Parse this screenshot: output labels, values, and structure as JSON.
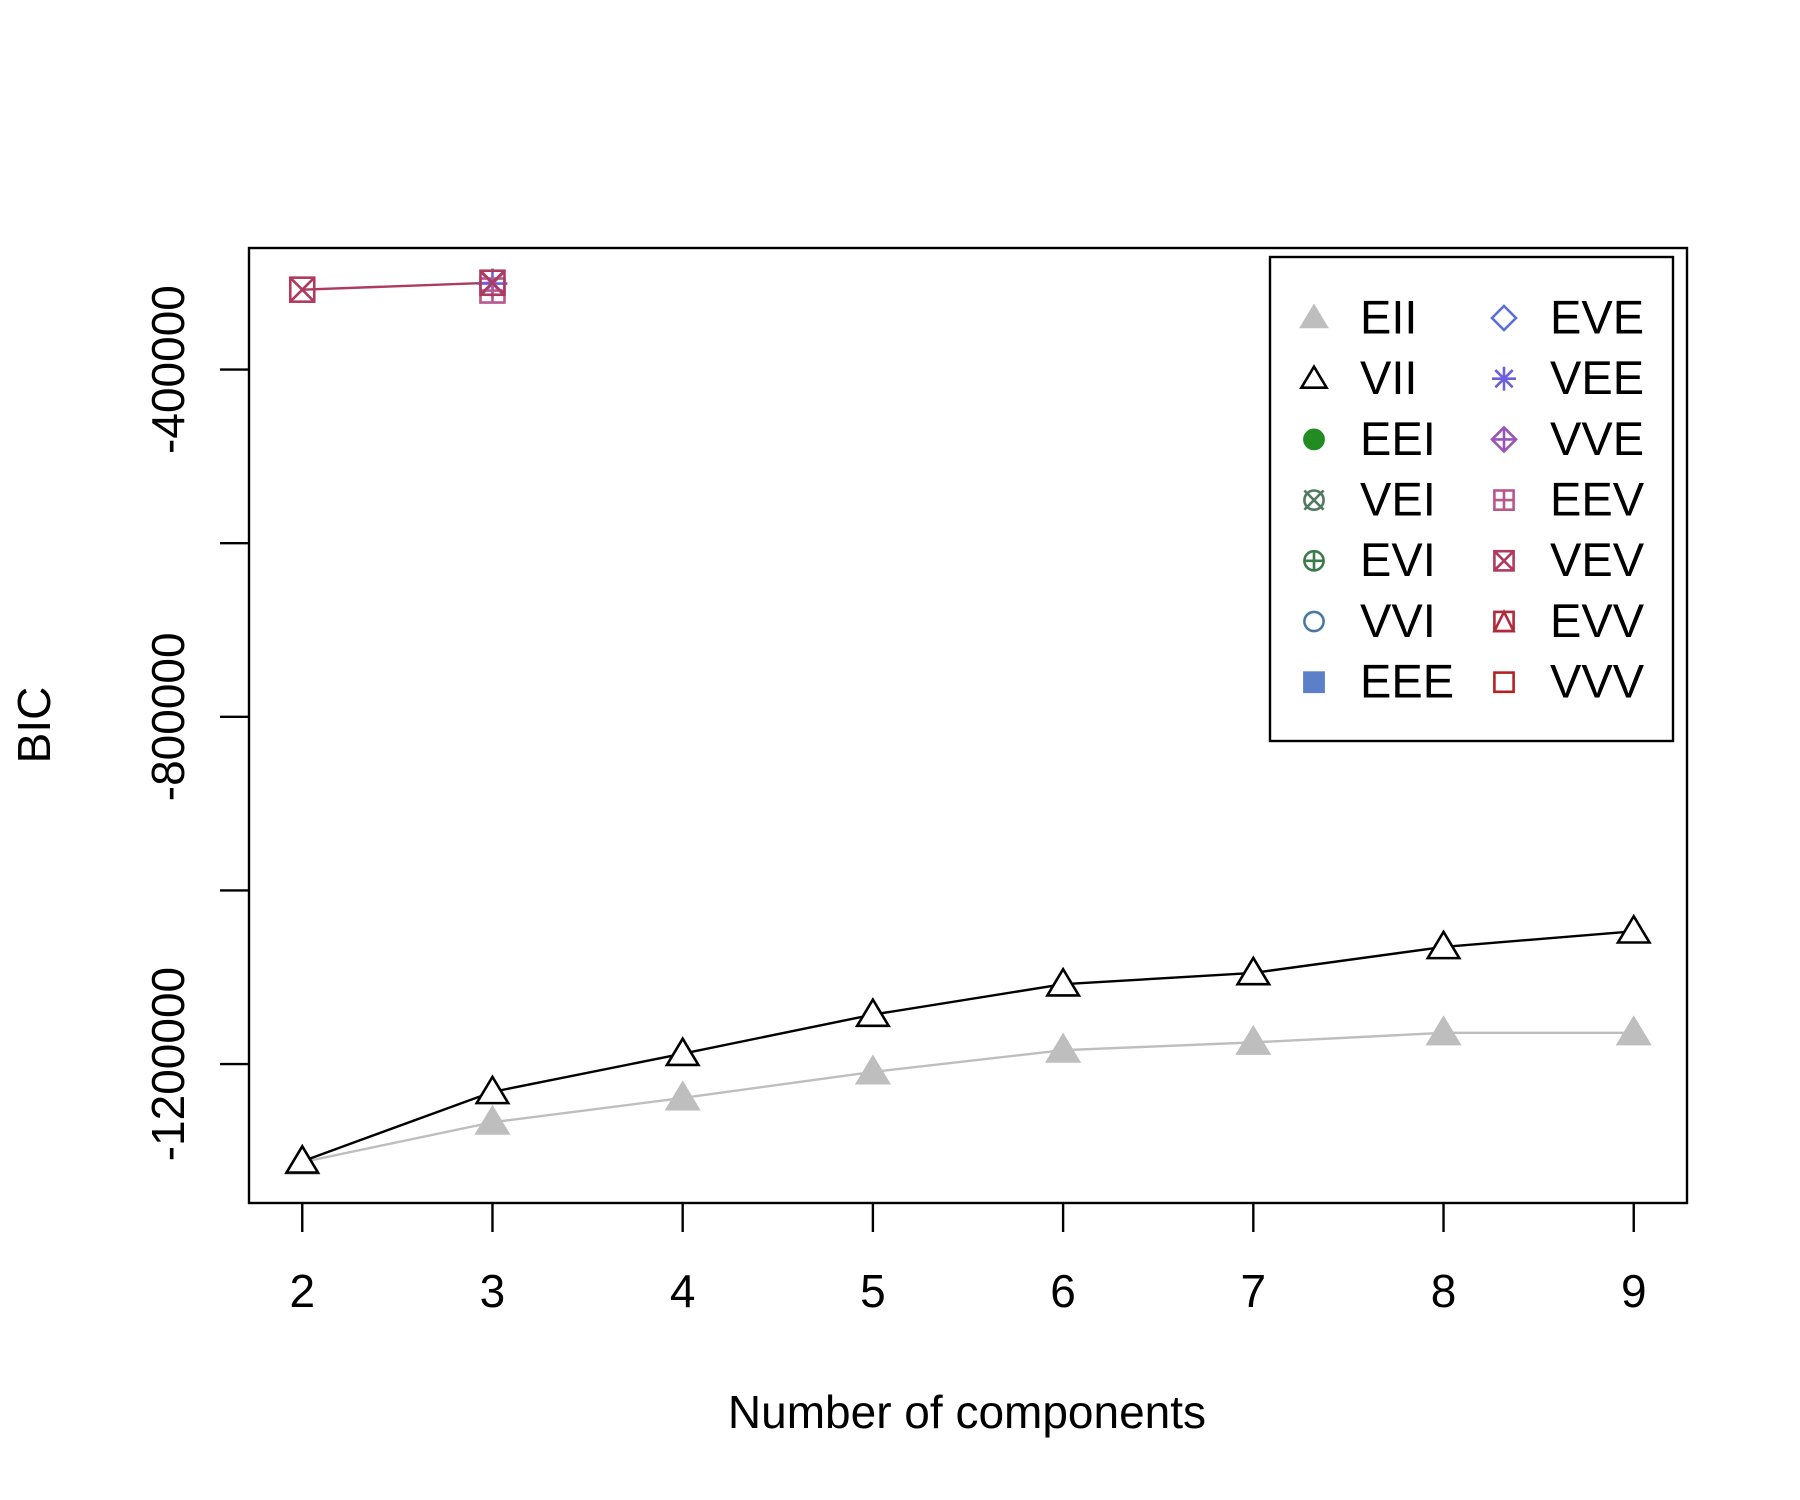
{
  "chart_data": {
    "type": "line",
    "x_label": "Number of components",
    "y_label": "BIC",
    "x": [
      2,
      3,
      4,
      5,
      6,
      7,
      8,
      9
    ],
    "xlim": [
      1.72,
      9.28
    ],
    "xticks": [
      2,
      3,
      4,
      5,
      6,
      7,
      8,
      9
    ],
    "ylim": [
      -1360000,
      -260000
    ],
    "yticks": [
      -400000,
      -800000,
      -1200000
    ],
    "yticks_minor": [
      -600000,
      -1000000
    ],
    "legend": "top-right",
    "series": [
      {
        "name": "EII",
        "color": "#bebebe",
        "symbol": "triangle-filled",
        "values": [
          -1313000,
          -1267000,
          -1239000,
          -1209000,
          -1184000,
          -1175000,
          -1164000,
          -1164000
        ]
      },
      {
        "name": "VII",
        "color": "#000000",
        "symbol": "triangle",
        "values": [
          -1312000,
          -1232000,
          -1188000,
          -1143000,
          -1108000,
          -1095000,
          -1065000,
          -1047000
        ]
      },
      {
        "name": "EEI",
        "color": "#228b22",
        "symbol": "circle-filled",
        "values": [
          null,
          null,
          null,
          null,
          null,
          null,
          null,
          null
        ]
      },
      {
        "name": "VEI",
        "color": "#4f7a5f",
        "symbol": "circle-x",
        "values": [
          null,
          null,
          null,
          null,
          null,
          null,
          null,
          null
        ]
      },
      {
        "name": "EVI",
        "color": "#3d7a4b",
        "symbol": "circle-plus",
        "values": [
          null,
          null,
          null,
          null,
          null,
          null,
          null,
          null
        ]
      },
      {
        "name": "VVI",
        "color": "#4a78a6",
        "symbol": "circle",
        "values": [
          null,
          null,
          null,
          null,
          null,
          null,
          null,
          null
        ]
      },
      {
        "name": "EEE",
        "color": "#5b7fc8",
        "symbol": "square-filled",
        "values": [
          null,
          null,
          null,
          null,
          null,
          null,
          null,
          null
        ]
      },
      {
        "name": "EVE",
        "color": "#5b6fd8",
        "symbol": "diamond",
        "values": [
          null,
          null,
          null,
          null,
          null,
          null,
          null,
          null
        ]
      },
      {
        "name": "VEE",
        "color": "#6b5fdc",
        "symbol": "star",
        "values": [
          null,
          -301000,
          null,
          null,
          null,
          null,
          null,
          null
        ]
      },
      {
        "name": "VVE",
        "color": "#9a55bb",
        "symbol": "diamond-plus",
        "values": [
          null,
          null,
          null,
          null,
          null,
          null,
          null,
          null
        ]
      },
      {
        "name": "EEV",
        "color": "#b8568f",
        "symbol": "square-plus",
        "values": [
          null,
          -309000,
          null,
          null,
          null,
          null,
          null,
          null
        ]
      },
      {
        "name": "VEV",
        "color": "#b03a5e",
        "symbol": "square-x",
        "values": [
          -308000,
          -300000,
          null,
          null,
          null,
          null,
          null,
          null
        ]
      },
      {
        "name": "EVV",
        "color": "#b02a3a",
        "symbol": "square-triangle",
        "values": [
          null,
          null,
          null,
          null,
          null,
          null,
          null,
          null
        ]
      },
      {
        "name": "VVV",
        "color": "#b22222",
        "symbol": "square",
        "values": [
          null,
          null,
          null,
          null,
          null,
          null,
          null,
          null
        ]
      }
    ]
  }
}
